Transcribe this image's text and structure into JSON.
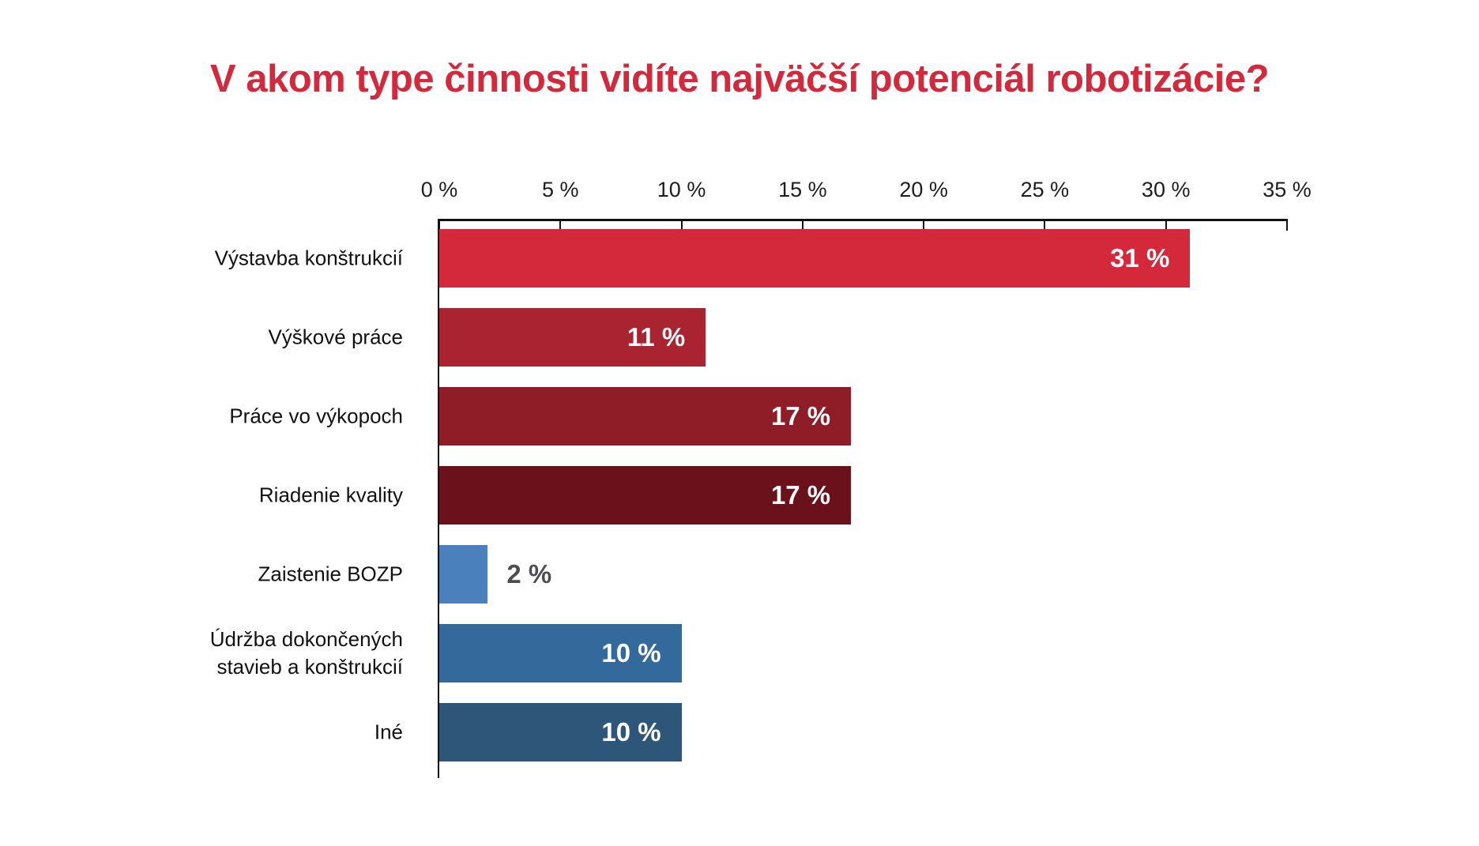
{
  "title": "V akom type činnosti vidíte najväčší potenciál robotizácie?",
  "colors": {
    "title": "#d3293c",
    "axis": "#111111",
    "tick_label": "#1d1d1d",
    "category_label": "#111111",
    "value_inside": "#ffffff",
    "value_outside": "#4d4d4f",
    "background": "#ffffff"
  },
  "chart_data": {
    "type": "bar",
    "orientation": "horizontal",
    "title": "V akom type činnosti vidíte najväčší potenciál robotizácie?",
    "xlabel": "",
    "ylabel": "",
    "xlim": [
      0,
      35
    ],
    "grid": false,
    "legend": false,
    "x_tick_labels": [
      "0 %",
      "5 %",
      "10 %",
      "15 %",
      "20 %",
      "25 %",
      "30 %",
      "35 %"
    ],
    "x_tick_values": [
      0,
      5,
      10,
      15,
      20,
      25,
      30,
      35
    ],
    "categories": [
      "Výstavba konštrukcií",
      "Výškové práce",
      "Práce vo výkopoch",
      "Riadenie kvality",
      "Zaistenie BOZP",
      "Údržba dokončených stavieb a konštrukcií",
      "Iné"
    ],
    "values": [
      31,
      11,
      17,
      17,
      2,
      10,
      10
    ],
    "bars": [
      {
        "label": "Výstavba konštrukcií",
        "value": 31,
        "value_text": "31 %",
        "color": "#d3293b",
        "value_position": "inside"
      },
      {
        "label": "Výškové práce",
        "value": 11,
        "value_text": "11 %",
        "color": "#a92330",
        "value_position": "inside"
      },
      {
        "label": "Práce vo výkopoch",
        "value": 17,
        "value_text": "17 %",
        "color": "#8e1d28",
        "value_position": "inside"
      },
      {
        "label": "Riadenie kvality",
        "value": 17,
        "value_text": "17 %",
        "color": "#6a111b",
        "value_position": "inside"
      },
      {
        "label": "Zaistenie BOZP",
        "value": 2,
        "value_text": "2 %",
        "color": "#4a81bc",
        "value_position": "outside"
      },
      {
        "label": "Údržba dokončených stavieb a konštrukcií",
        "value": 10,
        "value_text": "10 %",
        "color": "#34699c",
        "value_position": "inside"
      },
      {
        "label": "Iné",
        "value": 10,
        "value_text": "10 %",
        "color": "#2d5679",
        "value_position": "inside"
      }
    ]
  }
}
